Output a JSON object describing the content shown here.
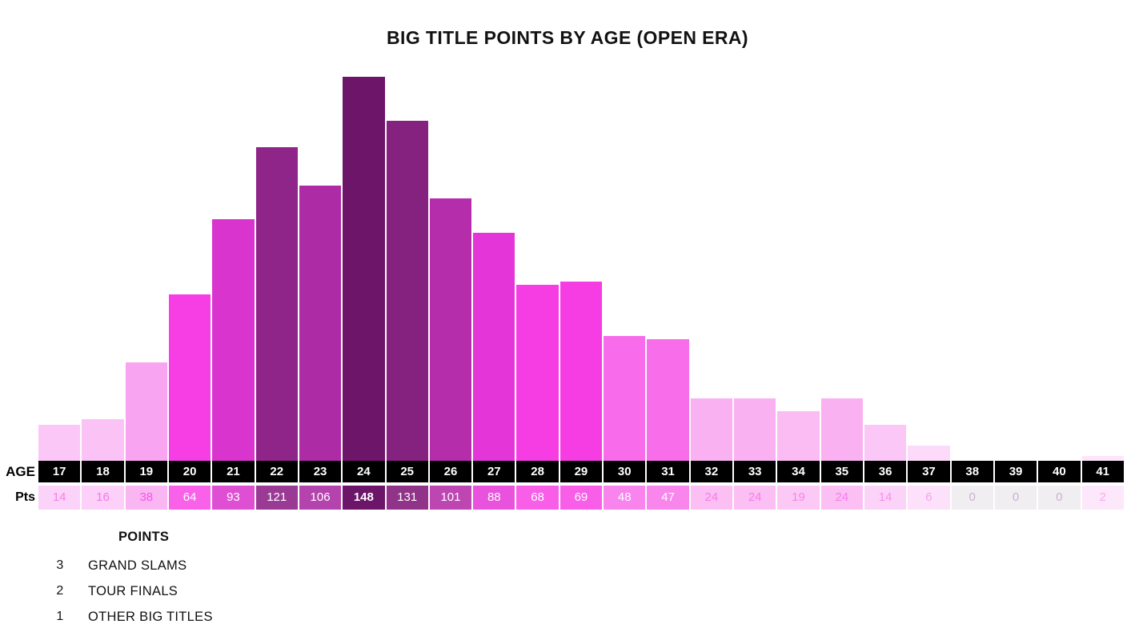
{
  "title": "BIG TITLE POINTS BY AGE (OPEN ERA)",
  "age_label": "AGE",
  "pts_label": "Pts",
  "legend": {
    "title": "POINTS",
    "items": [
      {
        "points": "3",
        "label": "GRAND SLAMS"
      },
      {
        "points": "2",
        "label": "TOUR FINALS"
      },
      {
        "points": "1",
        "label": "OTHER BIG TITLES"
      }
    ]
  },
  "colors": {
    "axis_row_bg": "#000000",
    "axis_row_text": "#ffffff",
    "background": "#ffffff",
    "max_bar": "#6d1568",
    "min_bar": "#fee5fb"
  },
  "chart_data": {
    "type": "bar",
    "title": "BIG TITLE POINTS BY AGE (OPEN ERA)",
    "xlabel": "AGE",
    "ylabel": "Pts",
    "ylim": [
      0,
      148
    ],
    "grid": false,
    "legend_position": "bottom-left",
    "categories": [
      17,
      18,
      19,
      20,
      21,
      22,
      23,
      24,
      25,
      26,
      27,
      28,
      29,
      30,
      31,
      32,
      33,
      34,
      35,
      36,
      37,
      38,
      39,
      40,
      41
    ],
    "values": [
      14,
      16,
      38,
      64,
      93,
      121,
      106,
      148,
      131,
      101,
      88,
      68,
      69,
      48,
      47,
      24,
      24,
      19,
      24,
      14,
      6,
      0,
      0,
      0,
      2
    ],
    "points": [
      {
        "age": 17,
        "value": 14,
        "bar_color": "#fbc7f6",
        "cell_bg": "#fcd3f8",
        "cell_text": "#f77de9"
      },
      {
        "age": 18,
        "value": 16,
        "bar_color": "#fbc3f5",
        "cell_bg": "#fcd0f8",
        "cell_text": "#f777e8"
      },
      {
        "age": 19,
        "value": 38,
        "bar_color": "#f8a4f0",
        "cell_bg": "#fab5f3",
        "cell_text": "#f755e5"
      },
      {
        "age": 20,
        "value": 64,
        "bar_color": "#f73ee4",
        "cell_bg": "#f961e8",
        "cell_text": "#ffffff"
      },
      {
        "age": 21,
        "value": 93,
        "bar_color": "#d934ce",
        "cell_bg": "#de4fd4",
        "cell_text": "#ffffff"
      },
      {
        "age": 22,
        "value": 121,
        "bar_color": "#8f2588",
        "cell_bg": "#9a3a94",
        "cell_text": "#ffffff"
      },
      {
        "age": 23,
        "value": 106,
        "bar_color": "#ad2ba4",
        "cell_bg": "#b543ad",
        "cell_text": "#ffffff"
      },
      {
        "age": 24,
        "value": 148,
        "bar_color": "#6d1568",
        "cell_bg": "#6d1568",
        "cell_text": "#ffffff"
      },
      {
        "age": 25,
        "value": 131,
        "bar_color": "#85217f",
        "cell_bg": "#913489",
        "cell_text": "#ffffff"
      },
      {
        "age": 26,
        "value": 101,
        "bar_color": "#b52dab",
        "cell_bg": "#bd46b3",
        "cell_text": "#ffffff"
      },
      {
        "age": 27,
        "value": 88,
        "bar_color": "#e436d8",
        "cell_bg": "#e852dd",
        "cell_text": "#ffffff"
      },
      {
        "age": 28,
        "value": 68,
        "bar_color": "#f63de3",
        "cell_bg": "#f85ee8",
        "cell_text": "#ffffff"
      },
      {
        "age": 29,
        "value": 69,
        "bar_color": "#f63de3",
        "cell_bg": "#f85ee8",
        "cell_text": "#ffffff"
      },
      {
        "age": 30,
        "value": 48,
        "bar_color": "#f86bea",
        "cell_bg": "#f984ed",
        "cell_text": "#ffffff"
      },
      {
        "age": 31,
        "value": 47,
        "bar_color": "#f86dea",
        "cell_bg": "#f986ed",
        "cell_text": "#ffffff"
      },
      {
        "age": 32,
        "value": 24,
        "bar_color": "#fab1f2",
        "cell_bg": "#fbbff4",
        "cell_text": "#f87bea"
      },
      {
        "age": 33,
        "value": 24,
        "bar_color": "#fab1f2",
        "cell_bg": "#fbbff4",
        "cell_text": "#f87bea"
      },
      {
        "age": 34,
        "value": 19,
        "bar_color": "#fbbcf4",
        "cell_bg": "#fcc8f6",
        "cell_text": "#f884eb"
      },
      {
        "age": 35,
        "value": 24,
        "bar_color": "#fab1f2",
        "cell_bg": "#fbbff4",
        "cell_text": "#f87bea"
      },
      {
        "age": 36,
        "value": 14,
        "bar_color": "#fbc7f6",
        "cell_bg": "#fcd3f8",
        "cell_text": "#f88fec"
      },
      {
        "age": 37,
        "value": 6,
        "bar_color": "#fddaf9",
        "cell_bg": "#fde1fa",
        "cell_text": "#f9a0ef"
      },
      {
        "age": 38,
        "value": 0,
        "bar_color": "#ffffff",
        "cell_bg": "#f0eef0",
        "cell_text": "#cdaed8"
      },
      {
        "age": 39,
        "value": 0,
        "bar_color": "#ffffff",
        "cell_bg": "#f0eef0",
        "cell_text": "#cdaed8"
      },
      {
        "age": 40,
        "value": 0,
        "bar_color": "#ffffff",
        "cell_bg": "#f0eef0",
        "cell_text": "#cdaed8"
      },
      {
        "age": 41,
        "value": 2,
        "bar_color": "#fee5fb",
        "cell_bg": "#fde7fb",
        "cell_text": "#f9a8f0"
      }
    ]
  }
}
